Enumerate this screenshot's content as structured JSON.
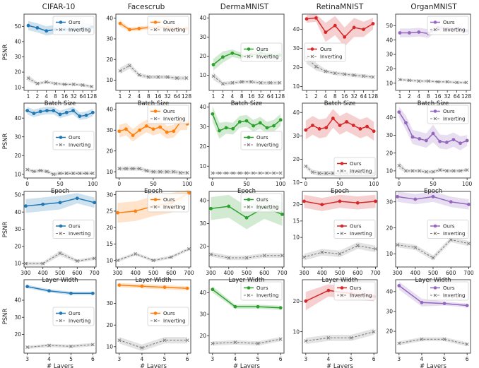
{
  "figure": {
    "ylabel": "PSNR",
    "legend": {
      "ours": "Ours",
      "inverting": "Inverting"
    },
    "colors": {
      "ours": [
        "#1f77b4",
        "#ff7f0e",
        "#2ca02c",
        "#d62728",
        "#9467bd"
      ],
      "inverting": "#7f7f7f"
    }
  },
  "chart_data": {
    "datasets": [
      "CIFAR-10",
      "Facescrub",
      "DermaMNIST",
      "RetinaMNIST",
      "OrganMNIST"
    ],
    "rows": [
      {
        "name": "batch-size",
        "type": "line",
        "xlabel": "Batch Size",
        "x_categorical": true,
        "x": [
          "1",
          "2",
          "4",
          "8",
          "16",
          "32",
          "64",
          "128"
        ],
        "panels": [
          {
            "yticks": [
              10,
              20,
              30,
              40,
              50
            ],
            "ylim": [
              8,
              58
            ],
            "legend": "top-right",
            "ours": [
              50.5,
              49,
              47,
              48,
              48,
              48,
              48.5,
              49.5
            ],
            "ours_band": [
              3,
              3,
              3,
              3,
              3,
              3,
              3,
              2.5
            ],
            "inverting": [
              16,
              12.5,
              13.5,
              12.5,
              12,
              12,
              11.5,
              10.5
            ],
            "inv_band": [
              2,
              1,
              1,
              1,
              1,
              1,
              1,
              1
            ]
          },
          {
            "yticks": [
              10,
              20,
              30,
              40
            ],
            "ylim": [
              5,
              42
            ],
            "legend": "top-right",
            "ours": [
              37.5,
              34.5,
              35,
              35.5,
              35.5,
              35.5,
              35,
              35
            ],
            "ours_band": [
              1.5,
              1,
              1,
              1,
              1,
              1,
              1,
              1
            ],
            "inverting": [
              14.5,
              17,
              12.5,
              11.5,
              11.5,
              11.5,
              11,
              11
            ],
            "inv_band": [
              1.5,
              1.5,
              1,
              1,
              1,
              1,
              1,
              1
            ]
          },
          {
            "yticks": [
              10,
              20,
              30,
              40
            ],
            "ylim": [
              2,
              42
            ],
            "legend": "center-right",
            "ours": [
              15.5,
              19.5,
              21.5,
              20,
              20.5,
              21.5,
              20.5,
              20.5
            ],
            "ours_band": [
              3,
              3,
              2,
              1.5,
              1.5,
              1.5,
              1.5,
              1.5
            ],
            "inverting": [
              9.5,
              5.5,
              6,
              6.5,
              6.5,
              6,
              6,
              6
            ],
            "inv_band": [
              2,
              1,
              1,
              1,
              1,
              1,
              1,
              1
            ]
          },
          {
            "yticks": [
              10,
              20,
              30,
              40
            ],
            "ylim": [
              8,
              48
            ],
            "legend": "center-left",
            "ours": [
              45.5,
              46,
              38.5,
              42,
              36,
              41,
              40,
              43
            ],
            "ours_band": [
              2,
              2,
              5,
              5,
              5,
              5,
              4,
              3
            ],
            "inverting": [
              25,
              20.5,
              18,
              17,
              16.5,
              16,
              15.5,
              15
            ],
            "inv_band": [
              3,
              2,
              1,
              1,
              1,
              1,
              1,
              1
            ]
          },
          {
            "yticks": [
              10,
              20,
              30,
              40,
              50
            ],
            "ylim": [
              5,
              58
            ],
            "legend": "top-right",
            "ours": [
              45,
              45,
              45.5,
              44.5,
              48.5,
              48,
              48,
              46.5
            ],
            "ours_band": [
              3,
              3,
              3,
              3,
              2,
              2,
              2,
              2
            ],
            "inverting": [
              12.5,
              12,
              11.5,
              11.5,
              11,
              11,
              10.5,
              10.5
            ],
            "inv_band": [
              1,
              1,
              1,
              1,
              1,
              1,
              1,
              1
            ]
          }
        ]
      },
      {
        "name": "epoch",
        "type": "line",
        "xlabel": "Epoch",
        "xticks": [
          0,
          50,
          100
        ],
        "xlim": [
          -5,
          105
        ],
        "x": [
          0,
          10,
          20,
          30,
          40,
          50,
          60,
          70,
          80,
          90,
          100
        ],
        "panels": [
          {
            "yticks": [
              10,
              20,
              30,
              40
            ],
            "ylim": [
              8,
              48
            ],
            "legend": "center-right",
            "ours": [
              44,
              42.5,
              43.5,
              44,
              44,
              42,
              43,
              44,
              41,
              41.5,
              43
            ],
            "ours_band": [
              2,
              2,
              2,
              2,
              2,
              2,
              2,
              2,
              2,
              2,
              2
            ],
            "inverting": [
              12.5,
              11.5,
              12,
              11.5,
              10,
              10.5,
              10.5,
              10.5,
              10.5,
              10.5,
              10.5
            ],
            "inv_band": [
              1,
              1,
              1,
              1,
              1,
              1,
              1,
              1,
              1,
              1,
              1
            ]
          },
          {
            "yticks": [
              10,
              20,
              30,
              40
            ],
            "ylim": [
              7,
              43
            ],
            "legend": "top-right",
            "ours": [
              29.5,
              30.5,
              27.5,
              30,
              32,
              30.5,
              31.5,
              29,
              29.5,
              34,
              33
            ],
            "ours_band": [
              3,
              3,
              3,
              3,
              3,
              3,
              3,
              3,
              3,
              4,
              3
            ],
            "inverting": [
              11.5,
              11.5,
              11.5,
              11.5,
              10.5,
              10,
              10,
              10,
              10,
              9.5,
              9.5
            ],
            "inv_band": [
              1,
              1,
              1,
              1,
              1,
              1,
              1,
              1,
              1,
              1,
              1
            ]
          },
          {
            "yticks": [
              10,
              20,
              30,
              40
            ],
            "ylim": [
              4,
              42
            ],
            "legend": "center-right",
            "ours": [
              36.5,
              28,
              29.5,
              29,
              32.5,
              33,
              30.5,
              32,
              29.5,
              30.5,
              33.5
            ],
            "ours_band": [
              4,
              4,
              3,
              3,
              3,
              3,
              3,
              3,
              3,
              3,
              3
            ],
            "inverting": [
              6.5,
              6.5,
              6.5,
              6.5,
              6.5,
              6.5,
              6.5,
              6.5,
              6.5,
              6.5,
              6.5
            ],
            "inv_band": [
              0.5,
              0.5,
              0.5,
              0.5,
              0.5,
              0.5,
              0.5,
              0.5,
              0.5,
              0.5,
              0.5
            ]
          },
          {
            "yticks": [
              10,
              20,
              30,
              40
            ],
            "ylim": [
              12,
              44
            ],
            "legend": "bottom-right",
            "ours": [
              32.5,
              34.5,
              33,
              33.5,
              37.5,
              34.5,
              36,
              34.5,
              33,
              34,
              32
            ],
            "ours_band": [
              4,
              4,
              4,
              4,
              4,
              4,
              4,
              4,
              4,
              4,
              4
            ],
            "inverting": [
              17,
              14.5,
              14,
              14,
              14,
              14,
              14,
              14,
              14,
              14,
              14
            ],
            "inv_band": [
              1,
              1,
              1,
              1,
              1,
              1,
              1,
              1,
              1,
              1,
              1
            ]
          },
          {
            "yticks": [
              10,
              20,
              30,
              40
            ],
            "ylim": [
              6,
              48
            ],
            "legend": "top-right",
            "ours": [
              43,
              37,
              29,
              28,
              27,
              31,
              26.5,
              26,
              27.5,
              25.5,
              27
            ],
            "ours_band": [
              3,
              4,
              4,
              4,
              4,
              5,
              4,
              4,
              4,
              4,
              3
            ],
            "inverting": [
              13,
              10,
              10,
              10,
              9.5,
              9.5,
              10.5,
              10,
              10,
              10,
              10.5
            ],
            "inv_band": [
              2,
              1,
              1,
              1,
              1,
              1,
              1,
              1,
              1,
              1,
              1
            ]
          }
        ]
      },
      {
        "name": "layer-width",
        "type": "line",
        "xlabel": "Layer Width",
        "xticks": [
          300,
          400,
          500,
          600,
          700
        ],
        "xlim": [
          290,
          710
        ],
        "x": [
          300,
          400,
          500,
          600,
          700
        ],
        "panels": [
          {
            "yticks": [
              10,
              20,
              30,
              40,
              50
            ],
            "ylim": [
              8,
              52
            ],
            "legend": "center-right",
            "ours": [
              43.5,
              44.5,
              45.5,
              48,
              45.5
            ],
            "ours_band": [
              4,
              4,
              4,
              3,
              3
            ],
            "inverting": [
              10,
              10,
              16,
              11.5,
              13
            ],
            "inv_band": [
              1,
              1,
              1.5,
              1,
              1
            ]
          },
          {
            "yticks": [
              10,
              15,
              20,
              25,
              30
            ],
            "ylim": [
              8,
              31
            ],
            "legend": "top-right",
            "ours": [
              24.5,
              25,
              26.5,
              27.5,
              30.5
            ],
            "ours_band": [
              3,
              3,
              3,
              3,
              1
            ],
            "inverting": [
              10,
              12,
              10,
              11,
              13.5
            ],
            "inv_band": [
              0.5,
              0.5,
              0.5,
              0.5,
              0.5
            ]
          },
          {
            "yticks": [
              20,
              30,
              40
            ],
            "ylim": [
              11,
              44
            ],
            "legend": "top-right",
            "ours": [
              36.5,
              37.5,
              32.5,
              37,
              34
            ],
            "ours_band": [
              5,
              5,
              5,
              5,
              5
            ],
            "inverting": [
              16.5,
              15,
              15,
              16,
              16
            ],
            "inv_band": [
              1,
              1,
              1,
              1,
              1
            ]
          },
          {
            "yticks": [
              10,
              15,
              20
            ],
            "ylim": [
              1,
              24
            ],
            "legend": "center-right",
            "ours": [
              21,
              20,
              21,
              20.5,
              21
            ],
            "ours_band": [
              2,
              2,
              2,
              2,
              2
            ],
            "inverting": [
              4,
              5.5,
              5,
              7.5,
              6.5
            ],
            "inv_band": [
              1,
              1,
              1,
              1,
              1
            ]
          },
          {
            "yticks": [
              10,
              20,
              30
            ],
            "ylim": [
              5,
              34
            ],
            "legend": "center-right",
            "ours": [
              32,
              31,
              32,
              30,
              29
            ],
            "ours_band": [
              2,
              2,
              2,
              2,
              2
            ],
            "inverting": [
              13.5,
              12.5,
              8.5,
              15.5,
              14
            ],
            "inv_band": [
              1,
              1,
              1,
              1,
              1
            ]
          }
        ]
      },
      {
        "name": "layers",
        "type": "line",
        "xlabel": "# Layers",
        "xticks": [
          3,
          4,
          5,
          6
        ],
        "xlim": [
          2.85,
          6.15
        ],
        "x": [
          3,
          4,
          5,
          6
        ],
        "panels": [
          {
            "yticks": [
              20,
              30,
              40
            ],
            "ylim": [
              9,
              52
            ],
            "legend": "center-right",
            "ours": [
              48,
              45.5,
              44,
              44
            ],
            "ours_band": [
              1,
              1,
              1,
              1
            ],
            "inverting": [
              12.5,
              13.5,
              13,
              14
            ],
            "inv_band": [
              1,
              1,
              1,
              1
            ]
          },
          {
            "yticks": [
              10,
              20,
              30
            ],
            "ylim": [
              7,
              41
            ],
            "legend": "center-right",
            "ours": [
              38.5,
              38,
              37.5,
              37
            ],
            "ours_band": [
              1,
              1,
              1,
              1
            ],
            "inverting": [
              13,
              9.5,
              13,
              13
            ],
            "inv_band": [
              1.5,
              1.5,
              1.5,
              1.5
            ]
          },
          {
            "yticks": [
              20,
              30,
              40
            ],
            "ylim": [
              12,
              46
            ],
            "legend": "top-right",
            "ours": [
              41.5,
              33.5,
              33.5,
              33
            ],
            "ours_band": [
              1.5,
              1,
              1,
              1
            ],
            "inverting": [
              16.5,
              17,
              16.5,
              18.5
            ],
            "inv_band": [
              1,
              1,
              1,
              1
            ]
          },
          {
            "yticks": [
              10,
              20
            ],
            "ylim": [
              3,
              27
            ],
            "legend": "top-right",
            "ours": [
              20,
              23.5,
              22.5,
              21.5
            ],
            "ours_band": [
              3,
              2,
              2,
              1.5
            ],
            "inverting": [
              7,
              8,
              8,
              10
            ],
            "inv_band": [
              1,
              1,
              1,
              1
            ]
          },
          {
            "yticks": [
              20,
              30,
              40
            ],
            "ylim": [
              9,
              46
            ],
            "legend": "top-right",
            "ours": [
              43,
              34.5,
              34,
              33
            ],
            "ours_band": [
              2,
              2,
              1,
              1
            ],
            "inverting": [
              14,
              16,
              16,
              13.5
            ],
            "inv_band": [
              1,
              1,
              1,
              1
            ]
          }
        ]
      }
    ]
  }
}
